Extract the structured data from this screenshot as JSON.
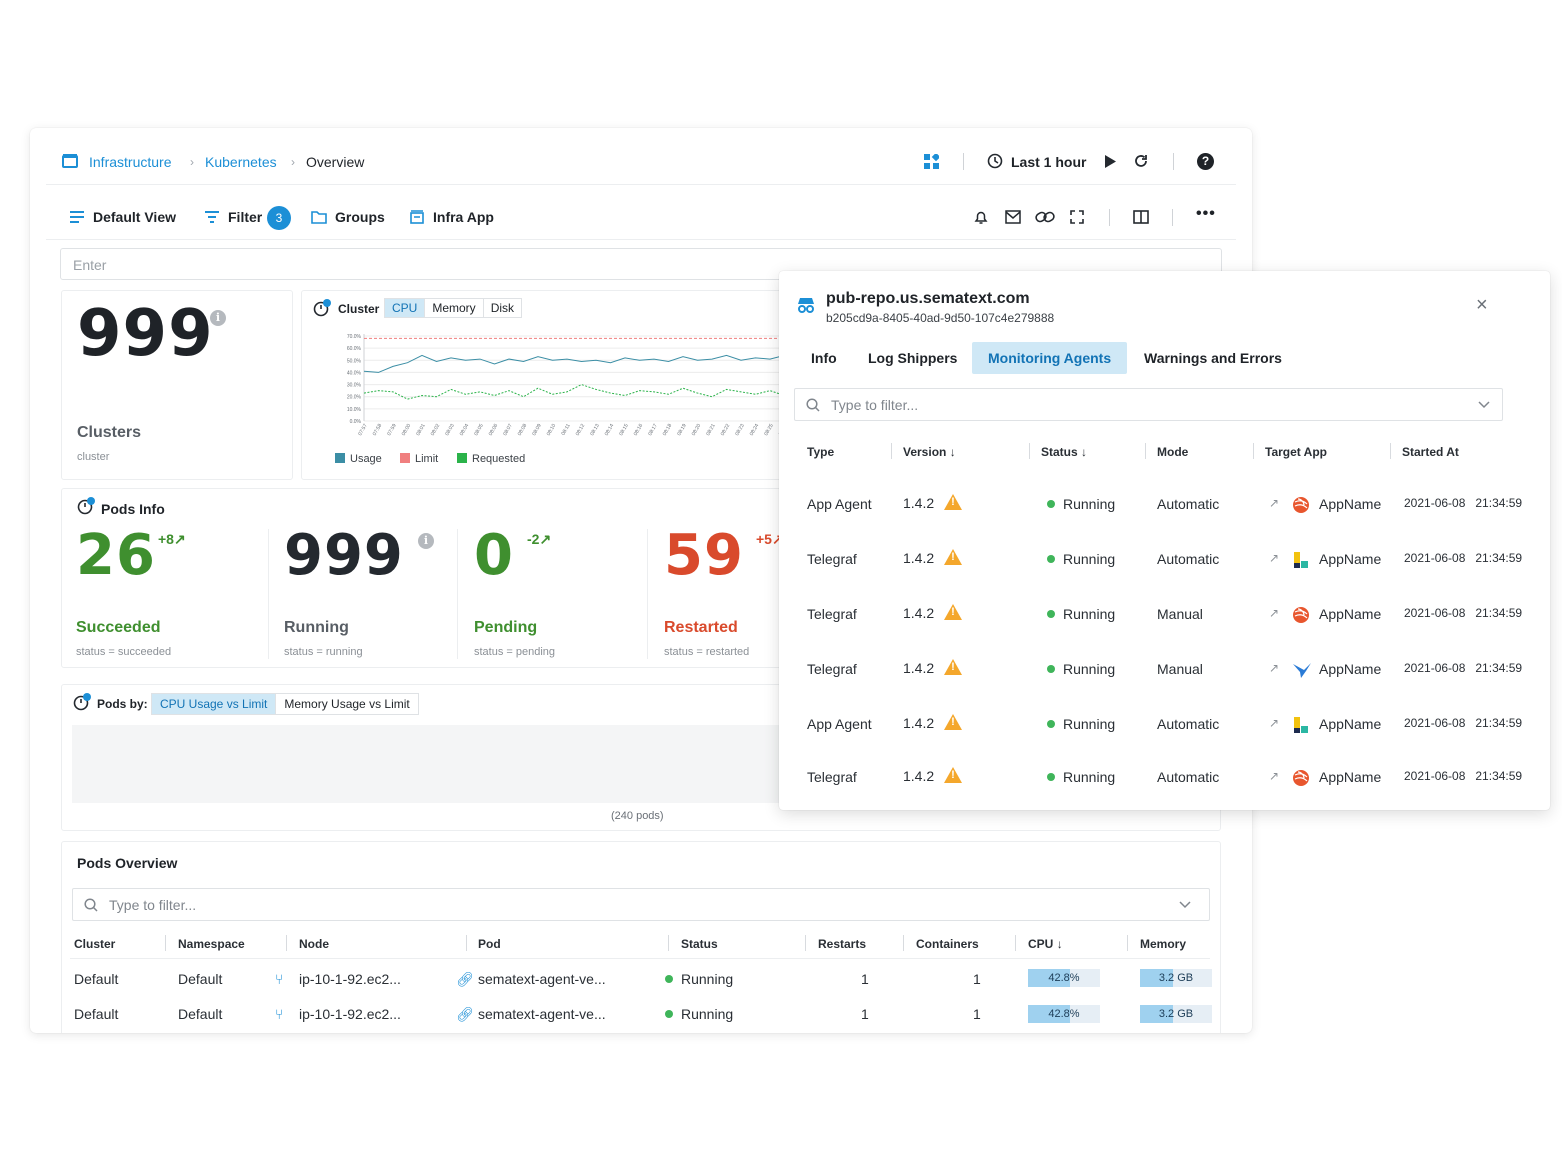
{
  "breadcrumb": {
    "items": [
      "Infrastructure",
      "Kubernetes",
      "Overview"
    ]
  },
  "header": {
    "time_range": "Last 1 hour"
  },
  "toolbar": {
    "default_view": "Default View",
    "filter": "Filter",
    "filter_count": "3",
    "groups": "Groups",
    "infra_app": "Infra App"
  },
  "search": {
    "placeholder": "Enter"
  },
  "clusters": {
    "value": "999",
    "label": "Clusters",
    "sub": "cluster"
  },
  "cluster_chart": {
    "title": "Cluster",
    "tabs": [
      "CPU",
      "Memory",
      "Disk"
    ],
    "active_tab": "CPU",
    "legend": [
      "Usage",
      "Limit",
      "Requested"
    ],
    "colors": {
      "usage": "#3b8ea5",
      "limit": "#f07f7f",
      "requested": "#2bb34a"
    }
  },
  "chart_data": {
    "type": "line",
    "title": "",
    "xlabel": "",
    "ylabel": "",
    "yticks": [
      "0.0%",
      "10.0%",
      "20.0%",
      "30.0%",
      "40.0%",
      "50.0%",
      "60.0%",
      "70.0%"
    ],
    "ylim": [
      0,
      70
    ],
    "categories": [
      "07:57",
      "07:58",
      "07:59",
      "08:00",
      "08:01",
      "08:02",
      "08:03",
      "08:04",
      "08:05",
      "08:06",
      "08:07",
      "08:08",
      "08:09",
      "08:10",
      "08:11",
      "08:12",
      "08:13",
      "08:14",
      "08:15",
      "08:16",
      "08:17",
      "08:18",
      "08:19",
      "08:20",
      "08:21",
      "08:22",
      "08:23",
      "08:24",
      "08:25",
      "08:26",
      "08:27"
    ],
    "series": [
      {
        "name": "Usage",
        "values": [
          41,
          40,
          45,
          48,
          54,
          49,
          52,
          50,
          51,
          47,
          51,
          49,
          53,
          50,
          51,
          49,
          50,
          48,
          52,
          50,
          51,
          49,
          53,
          50,
          51,
          54,
          50,
          52,
          51,
          54,
          53
        ]
      },
      {
        "name": "Limit",
        "values": [
          68,
          68,
          68,
          68,
          68,
          68,
          68,
          68,
          68,
          68,
          68,
          68,
          68,
          68,
          68,
          68,
          68,
          68,
          68,
          68,
          68,
          68,
          68,
          68,
          68,
          68,
          68,
          68,
          68,
          68,
          68
        ]
      },
      {
        "name": "Requested",
        "values": [
          23,
          25,
          24,
          18,
          21,
          20,
          26,
          22,
          24,
          21,
          25,
          20,
          27,
          22,
          24,
          30,
          26,
          23,
          21,
          25,
          24,
          22,
          27,
          23,
          20,
          26,
          24,
          22,
          25,
          21,
          20
        ]
      }
    ]
  },
  "pods_info": {
    "title": "Pods Info",
    "stats": [
      {
        "value": "26",
        "delta": "+8",
        "label": "Succeeded",
        "sub": "status = succeeded",
        "color": "#3f8f2f"
      },
      {
        "value": "999",
        "delta": "",
        "label": "Running",
        "sub": "status = running",
        "color": "#24292f"
      },
      {
        "value": "0",
        "delta": "-2",
        "label": "Pending",
        "sub": "status = pending",
        "color": "#3f8f2f"
      },
      {
        "value": "59",
        "delta": "+5",
        "label": "Restarted",
        "sub": "status = restarted",
        "color": "#d94a2c"
      }
    ]
  },
  "pods_by": {
    "label": "Pods by:",
    "tabs": [
      "CPU Usage vs Limit",
      "Memory Usage vs Limit"
    ],
    "count": "(240 pods)"
  },
  "pods_overview": {
    "title": "Pods Overview",
    "placeholder": "Type to filter...",
    "columns": [
      "Cluster",
      "Namespace",
      "Node",
      "Pod",
      "Status",
      "Restarts",
      "Containers",
      "CPU",
      "Memory"
    ],
    "rows": [
      {
        "cluster": "Default",
        "namespace": "Default",
        "node": "ip-10-1-92.ec2...",
        "pod": "sematext-agent-ve...",
        "status": "Running",
        "restarts": "1",
        "containers": "1",
        "cpu": "42.8%",
        "memory": "3.2 GB"
      },
      {
        "cluster": "Default",
        "namespace": "Default",
        "node": "ip-10-1-92.ec2...",
        "pod": "sematext-agent-ve...",
        "status": "Running",
        "restarts": "1",
        "containers": "1",
        "cpu": "42.8%",
        "memory": "3.2 GB"
      }
    ]
  },
  "panel": {
    "host": "pub-repo.us.sematext.com",
    "id": "b205cd9a-8405-40ad-9d50-107c4e279888",
    "tabs": [
      "Info",
      "Log Shippers",
      "Monitoring Agents",
      "Warnings and Errors"
    ],
    "active_tab": "Monitoring Agents",
    "placeholder": "Type to filter...",
    "columns": [
      "Type",
      "Version",
      "Status",
      "Mode",
      "Target App",
      "Started At"
    ],
    "rows": [
      {
        "type": "App Agent",
        "version": "1.4.2",
        "status": "Running",
        "mode": "Automatic",
        "app": "AppName",
        "app_icon": "java-icon",
        "started": "2021-06-08   21:34:59"
      },
      {
        "type": "Telegraf",
        "version": "1.4.2",
        "status": "Running",
        "mode": "Automatic",
        "app": "AppName",
        "app_icon": "elastic-icon",
        "started": "2021-06-08   21:34:59"
      },
      {
        "type": "Telegraf",
        "version": "1.4.2",
        "status": "Running",
        "mode": "Manual",
        "app": "AppName",
        "app_icon": "java-icon",
        "started": "2021-06-08   21:34:59"
      },
      {
        "type": "Telegraf",
        "version": "1.4.2",
        "status": "Running",
        "mode": "Manual",
        "app": "AppName",
        "app_icon": "bird-icon",
        "started": "2021-06-08   21:34:59"
      },
      {
        "type": "App Agent",
        "version": "1.4.2",
        "status": "Running",
        "mode": "Automatic",
        "app": "AppName",
        "app_icon": "elastic-icon",
        "started": "2021-06-08   21:34:59"
      },
      {
        "type": "Telegraf",
        "version": "1.4.2",
        "status": "Running",
        "mode": "Automatic",
        "app": "AppName",
        "app_icon": "java-icon",
        "started": "2021-06-08   21:34:59"
      }
    ]
  }
}
